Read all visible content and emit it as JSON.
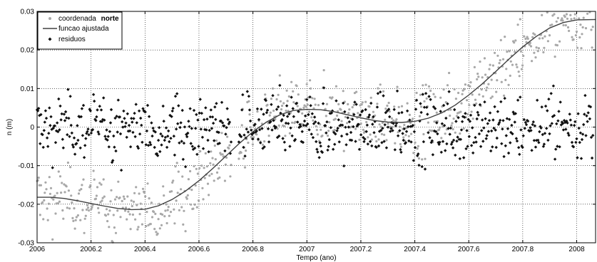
{
  "chart_data": {
    "type": "scatter",
    "title": "",
    "xlabel": "Tempo (ano)",
    "ylabel": "n (m)",
    "xlim": [
      2006,
      2008.07
    ],
    "ylim": [
      -0.03,
      0.03
    ],
    "x_ticks": [
      "2006",
      "2006.2",
      "2006.4",
      "2006.6",
      "2006.8",
      "2007",
      "2007.2",
      "2007.4",
      "2007.6",
      "2007.8",
      "2008"
    ],
    "y_ticks": [
      "0.03",
      "0.02",
      "0.01",
      "0",
      "-0.01",
      "-0.02",
      "-0.03"
    ],
    "grid": true,
    "legend_position": "top-left",
    "legend": {
      "coord_prefix": "coordenada",
      "coord_bold": "norte",
      "fit": "funcao ajustada",
      "resid": "residuos"
    },
    "series": [
      {
        "key": "coord",
        "style": "points",
        "color": "#a8a8a8"
      },
      {
        "key": "fit",
        "style": "line",
        "color": "#404040",
        "x": [
          2006,
          2006.05,
          2006.1,
          2006.15,
          2006.2,
          2006.25,
          2006.3,
          2006.35,
          2006.4,
          2006.45,
          2006.5,
          2006.55,
          2006.6,
          2006.65,
          2006.7,
          2006.75,
          2006.8,
          2006.85,
          2006.9,
          2006.95,
          2007,
          2007.05,
          2007.1,
          2007.15,
          2007.2,
          2007.25,
          2007.3,
          2007.35,
          2007.4,
          2007.45,
          2007.5,
          2007.55,
          2007.6,
          2007.65,
          2007.7,
          2007.75,
          2007.8,
          2007.85,
          2007.9,
          2007.95,
          2008,
          2008.07
        ],
        "y": [
          -0.0182,
          -0.0182,
          -0.0185,
          -0.0191,
          -0.0198,
          -0.0205,
          -0.0211,
          -0.0214,
          -0.0213,
          -0.0204,
          -0.0188,
          -0.0166,
          -0.0139,
          -0.0108,
          -0.0075,
          -0.0042,
          -0.0012,
          0.0013,
          0.0032,
          0.0043,
          0.0046,
          0.0045,
          0.004,
          0.0032,
          0.0024,
          0.0017,
          0.0013,
          0.0012,
          0.0015,
          0.0023,
          0.0037,
          0.0057,
          0.0083,
          0.0112,
          0.0144,
          0.0177,
          0.0208,
          0.0235,
          0.0257,
          0.0271,
          0.0278,
          0.0279
        ]
      },
      {
        "key": "resid",
        "style": "points",
        "color": "#111111"
      }
    ]
  }
}
